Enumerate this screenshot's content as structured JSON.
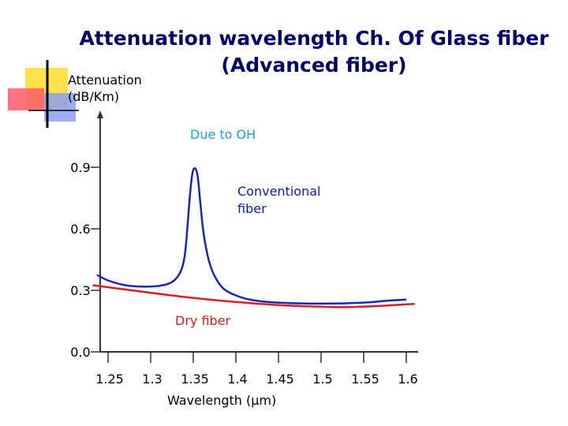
{
  "slide": {
    "title_line1": "Attenuation wavelength Ch. Of Glass fiber",
    "title_line2": "(Advanced fiber)",
    "accent_colors": {
      "yellow": "#ffe14d",
      "red": "#ff5a6a",
      "blue": "#8c9ef2",
      "title": "#000066"
    }
  },
  "chart_data": {
    "type": "line",
    "ylabel_line1": "Attenuation",
    "ylabel_line2": "(dB/Km)",
    "xlabel": "Wavelength (µm)",
    "xlim": [
      1.23,
      1.62
    ],
    "ylim": [
      0.0,
      1.12
    ],
    "x_ticks": [
      1.25,
      1.3,
      1.35,
      1.4,
      1.45,
      1.5,
      1.55,
      1.6
    ],
    "x_tick_labels": [
      "1.25",
      "1.3",
      "1.35",
      "1.4",
      "1.45",
      "1.5",
      "1.55",
      "1.6"
    ],
    "y_ticks": [
      0.0,
      0.3,
      0.6,
      0.9
    ],
    "y_tick_labels": [
      "0.0",
      "0.3",
      "0.6",
      "0.9"
    ],
    "grid": false,
    "series": [
      {
        "name": "Conventional fiber",
        "color": "#1a24b8",
        "points": [
          [
            1.237,
            0.375
          ],
          [
            1.25,
            0.348
          ],
          [
            1.27,
            0.325
          ],
          [
            1.29,
            0.318
          ],
          [
            1.31,
            0.322
          ],
          [
            1.325,
            0.34
          ],
          [
            1.335,
            0.39
          ],
          [
            1.34,
            0.47
          ],
          [
            1.343,
            0.6
          ],
          [
            1.346,
            0.76
          ],
          [
            1.349,
            0.87
          ],
          [
            1.352,
            0.895
          ],
          [
            1.355,
            0.86
          ],
          [
            1.358,
            0.74
          ],
          [
            1.362,
            0.58
          ],
          [
            1.368,
            0.45
          ],
          [
            1.375,
            0.37
          ],
          [
            1.385,
            0.31
          ],
          [
            1.4,
            0.275
          ],
          [
            1.42,
            0.252
          ],
          [
            1.45,
            0.24
          ],
          [
            1.5,
            0.235
          ],
          [
            1.55,
            0.24
          ],
          [
            1.58,
            0.25
          ],
          [
            1.6,
            0.255
          ]
        ]
      },
      {
        "name": "Dry fiber",
        "color": "#d42020",
        "points": [
          [
            1.232,
            0.325
          ],
          [
            1.25,
            0.315
          ],
          [
            1.3,
            0.288
          ],
          [
            1.35,
            0.263
          ],
          [
            1.4,
            0.243
          ],
          [
            1.45,
            0.228
          ],
          [
            1.5,
            0.22
          ],
          [
            1.53,
            0.218
          ],
          [
            1.56,
            0.222
          ],
          [
            1.6,
            0.232
          ],
          [
            1.61,
            0.233
          ]
        ]
      }
    ],
    "annotations": [
      {
        "text": "Due to OH",
        "color": "#1a9fd6"
      },
      {
        "text_line1": "Conventional",
        "text_line2": "fiber",
        "color": "#0a1fa8"
      },
      {
        "text": "Dry fiber",
        "color": "#d41e1e"
      }
    ]
  }
}
